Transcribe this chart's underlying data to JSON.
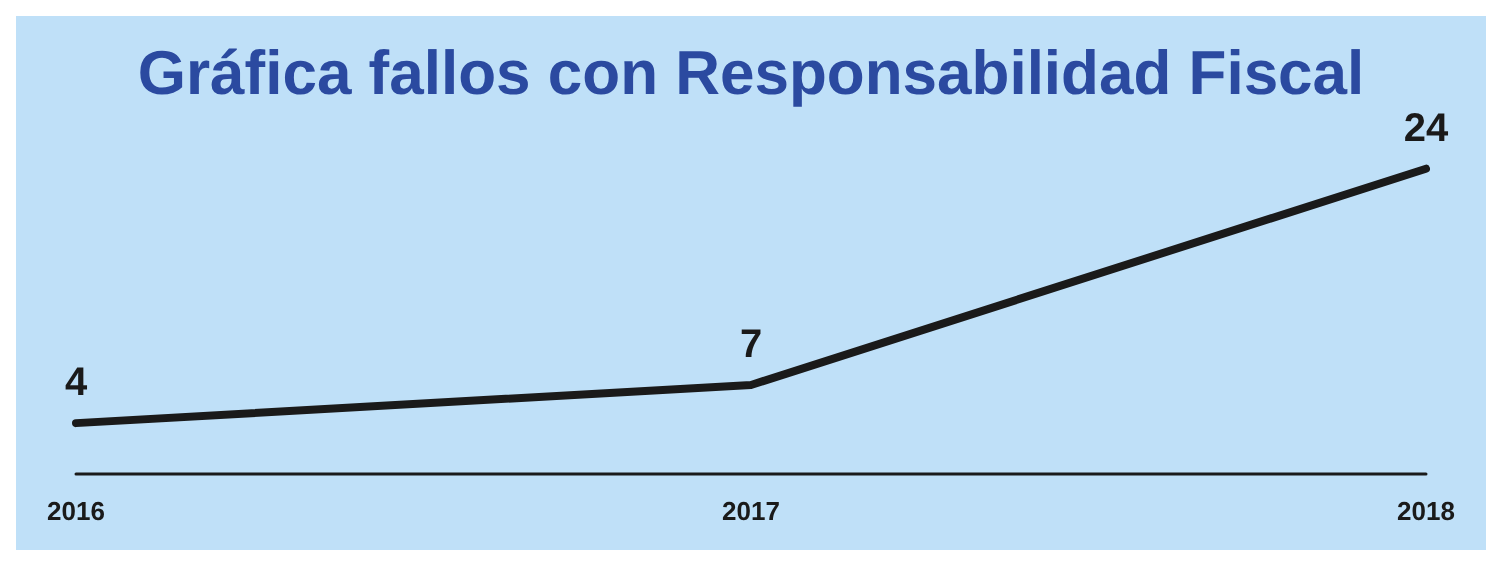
{
  "chart_data": {
    "type": "line",
    "title": "Gráfica fallos con Responsabilidad Fiscal",
    "categories": [
      "2016",
      "2017",
      "2018"
    ],
    "series": [
      {
        "color": "#1a1a1a",
        "values": [
          4,
          7,
          24
        ]
      }
    ],
    "data_labels": true,
    "grid": false,
    "marker": "none",
    "line_style": "solid"
  }
}
